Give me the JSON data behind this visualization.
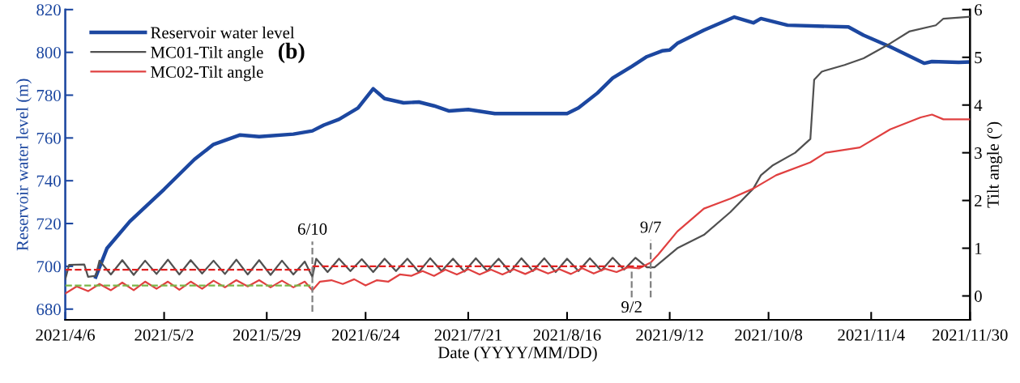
{
  "chart_data": {
    "type": "line",
    "xlabel": "Date (YYYY/MM/DD)",
    "ylabel": "Reservoir water level (m)",
    "y2label": "Tilt angle (°)",
    "annotations": [
      "(b)",
      "6/10",
      "9/2",
      "9/7"
    ],
    "xlim": [
      "2021-04-06",
      "2021-11-30"
    ],
    "xticks": [
      {
        "value": "2021-04-06",
        "label": "2021/4/6"
      },
      {
        "value": "2021-05-02",
        "label": "2021/5/2"
      },
      {
        "value": "2021-05-29",
        "label": "2021/5/29"
      },
      {
        "value": "2021-06-24",
        "label": "2021/6/24"
      },
      {
        "value": "2021-07-21",
        "label": "2021/7/21"
      },
      {
        "value": "2021-08-16",
        "label": "2021/8/16"
      },
      {
        "value": "2021-09-12",
        "label": "2021/9/12"
      },
      {
        "value": "2021-10-08",
        "label": "2021/10/8"
      },
      {
        "value": "2021-11-04",
        "label": "2021/11/4"
      },
      {
        "value": "2021-11-30",
        "label": "2021/11/30"
      }
    ],
    "ylim": [
      675,
      820
    ],
    "yticks": [
      680,
      700,
      720,
      740,
      760,
      780,
      800,
      820
    ],
    "y2lim": [
      -0.5,
      6
    ],
    "y2ticks": [
      0,
      1,
      2,
      3,
      4,
      5,
      6
    ],
    "grid": false,
    "legend": "top left",
    "marker": "none",
    "line_style": "solid",
    "series": [
      {
        "name": "Reservoir water level",
        "color": "#1c47a0",
        "x": [
          "2021-04-14",
          "2021-04-17",
          "2021-04-23",
          "2021-05-02",
          "2021-05-10",
          "2021-05-15",
          "2021-05-22",
          "2021-05-27",
          "2021-06-05",
          "2021-06-10",
          "2021-06-13",
          "2021-06-17",
          "2021-06-22",
          "2021-06-26",
          "2021-06-29",
          "2021-07-04",
          "2021-07-08",
          "2021-07-12",
          "2021-07-16",
          "2021-07-21",
          "2021-07-28",
          "2021-08-16",
          "2021-08-19",
          "2021-08-24",
          "2021-08-28",
          "2021-09-02",
          "2021-09-06",
          "2021-09-10",
          "2021-09-12",
          "2021-09-14",
          "2021-09-21",
          "2021-09-29",
          "2021-10-04",
          "2021-10-06",
          "2021-10-13",
          "2021-10-29",
          "2021-11-02",
          "2021-11-09",
          "2021-11-18",
          "2021-11-20",
          "2021-11-27",
          "2021-11-30"
        ],
        "values": [
          695,
          708.5,
          721,
          736,
          750,
          757,
          761.4,
          760.6,
          761.8,
          763.3,
          766,
          768.7,
          774,
          783,
          778.4,
          776.4,
          776.8,
          775,
          772.6,
          773.3,
          771.4,
          771.4,
          774,
          781,
          788,
          793.4,
          798,
          800.7,
          801.1,
          804.2,
          810.4,
          816.5,
          813.8,
          815.8,
          812.7,
          811.9,
          808,
          802.6,
          794.9,
          795.7,
          795.3,
          795.5
        ]
      },
      {
        "name": "MC01-Tilt angle",
        "color": "#505050",
        "axis": "y2",
        "x": [
          "2021-04-06",
          "2021-04-07",
          "2021-04-11",
          "2021-04-12",
          "2021-04-14",
          "2021-04-15",
          "2021-04-18",
          "2021-04-21",
          "2021-04-24",
          "2021-04-27",
          "2021-04-30",
          "2021-05-03",
          "2021-05-06",
          "2021-05-09",
          "2021-05-12",
          "2021-05-15",
          "2021-05-18",
          "2021-05-21",
          "2021-05-24",
          "2021-05-27",
          "2021-05-30",
          "2021-06-02",
          "2021-06-05",
          "2021-06-08",
          "2021-06-10",
          "2021-06-11",
          "2021-06-14",
          "2021-06-17",
          "2021-06-20",
          "2021-06-23",
          "2021-06-26",
          "2021-06-29",
          "2021-07-02",
          "2021-07-05",
          "2021-07-08",
          "2021-07-11",
          "2021-07-14",
          "2021-07-17",
          "2021-07-20",
          "2021-07-23",
          "2021-07-26",
          "2021-07-29",
          "2021-08-01",
          "2021-08-04",
          "2021-08-07",
          "2021-08-10",
          "2021-08-13",
          "2021-08-16",
          "2021-08-19",
          "2021-08-22",
          "2021-08-25",
          "2021-08-28",
          "2021-08-31",
          "2021-09-03",
          "2021-09-06",
          "2021-09-08",
          "2021-09-11",
          "2021-09-14",
          "2021-09-21",
          "2021-09-28",
          "2021-10-04",
          "2021-10-06",
          "2021-10-09",
          "2021-10-15",
          "2021-10-19",
          "2021-10-20",
          "2021-10-22",
          "2021-10-28",
          "2021-11-02",
          "2021-11-09",
          "2021-11-14",
          "2021-11-21",
          "2021-11-23",
          "2021-11-30"
        ],
        "values": [
          0.35,
          0.65,
          0.66,
          0.4,
          0.42,
          0.74,
          0.45,
          0.75,
          0.44,
          0.74,
          0.46,
          0.76,
          0.45,
          0.75,
          0.47,
          0.74,
          0.46,
          0.76,
          0.45,
          0.75,
          0.44,
          0.74,
          0.45,
          0.72,
          0.4,
          0.78,
          0.5,
          0.78,
          0.52,
          0.77,
          0.5,
          0.78,
          0.52,
          0.78,
          0.5,
          0.79,
          0.52,
          0.78,
          0.51,
          0.79,
          0.52,
          0.78,
          0.5,
          0.79,
          0.52,
          0.79,
          0.5,
          0.78,
          0.52,
          0.79,
          0.53,
          0.8,
          0.55,
          0.8,
          0.6,
          0.6,
          0.8,
          1.0,
          1.28,
          1.76,
          2.25,
          2.53,
          2.73,
          3.0,
          3.29,
          4.53,
          4.7,
          4.84,
          4.98,
          5.29,
          5.54,
          5.67,
          5.81,
          5.85
        ]
      },
      {
        "name": "MC02-Tilt angle",
        "color": "#e04040",
        "axis": "y2",
        "x": [
          "2021-04-06",
          "2021-04-09",
          "2021-04-12",
          "2021-04-15",
          "2021-04-18",
          "2021-04-21",
          "2021-04-24",
          "2021-04-27",
          "2021-04-30",
          "2021-05-03",
          "2021-05-06",
          "2021-05-09",
          "2021-05-12",
          "2021-05-15",
          "2021-05-18",
          "2021-05-21",
          "2021-05-24",
          "2021-05-27",
          "2021-05-30",
          "2021-06-02",
          "2021-06-05",
          "2021-06-08",
          "2021-06-10",
          "2021-06-12",
          "2021-06-15",
          "2021-06-18",
          "2021-06-21",
          "2021-06-24",
          "2021-06-27",
          "2021-06-30",
          "2021-07-03",
          "2021-07-06",
          "2021-07-09",
          "2021-07-12",
          "2021-07-15",
          "2021-07-18",
          "2021-07-21",
          "2021-07-24",
          "2021-07-27",
          "2021-07-30",
          "2021-08-02",
          "2021-08-05",
          "2021-08-08",
          "2021-08-11",
          "2021-08-14",
          "2021-08-17",
          "2021-08-20",
          "2021-08-23",
          "2021-08-26",
          "2021-08-29",
          "2021-09-01",
          "2021-09-04",
          "2021-09-07",
          "2021-09-09",
          "2021-09-14",
          "2021-09-21",
          "2021-09-28",
          "2021-10-04",
          "2021-10-10",
          "2021-10-19",
          "2021-10-23",
          "2021-11-01",
          "2021-11-09",
          "2021-11-17",
          "2021-11-20",
          "2021-11-23",
          "2021-11-30"
        ],
        "values": [
          0.05,
          0.2,
          0.1,
          0.25,
          0.12,
          0.28,
          0.12,
          0.3,
          0.15,
          0.3,
          0.13,
          0.3,
          0.15,
          0.32,
          0.18,
          0.33,
          0.2,
          0.33,
          0.18,
          0.32,
          0.18,
          0.3,
          0.12,
          0.3,
          0.33,
          0.25,
          0.35,
          0.22,
          0.33,
          0.3,
          0.45,
          0.42,
          0.52,
          0.42,
          0.55,
          0.45,
          0.56,
          0.45,
          0.55,
          0.45,
          0.56,
          0.46,
          0.57,
          0.47,
          0.56,
          0.46,
          0.58,
          0.47,
          0.57,
          0.5,
          0.6,
          0.58,
          0.7,
          0.87,
          1.35,
          1.83,
          2.04,
          2.25,
          2.53,
          2.8,
          3.0,
          3.11,
          3.49,
          3.74,
          3.8,
          3.7,
          3.7
        ]
      },
      {
        "color": "#e02020",
        "axis": "y2",
        "line_style": "dashed",
        "x": [
          "2021-04-06",
          "2021-06-10"
        ],
        "values": [
          0.55,
          0.55
        ]
      },
      {
        "color": "#e02020",
        "axis": "y2",
        "line_style": "dashed",
        "x": [
          "2021-06-10",
          "2021-09-06"
        ],
        "values": [
          0.62,
          0.62
        ]
      },
      {
        "color": "#7ab648",
        "axis": "y2",
        "line_style": "dashed",
        "x": [
          "2021-04-06",
          "2021-06-10"
        ],
        "values": [
          0.22,
          0.22
        ]
      },
      {
        "color": "#808080",
        "axis": "y2",
        "line_style": "dashed",
        "x": [
          "2021-06-10",
          "2021-06-10"
        ],
        "values": [
          -0.33,
          1.14
        ]
      },
      {
        "color": "#808080",
        "axis": "y2",
        "line_style": "dashed",
        "x": [
          "2021-09-02",
          "2021-09-02"
        ],
        "values": [
          -0.03,
          0.52
        ]
      },
      {
        "color": "#808080",
        "axis": "y2",
        "line_style": "dashed",
        "x": [
          "2021-09-07",
          "2021-09-07"
        ],
        "values": [
          -0.03,
          1.18
        ]
      }
    ]
  }
}
